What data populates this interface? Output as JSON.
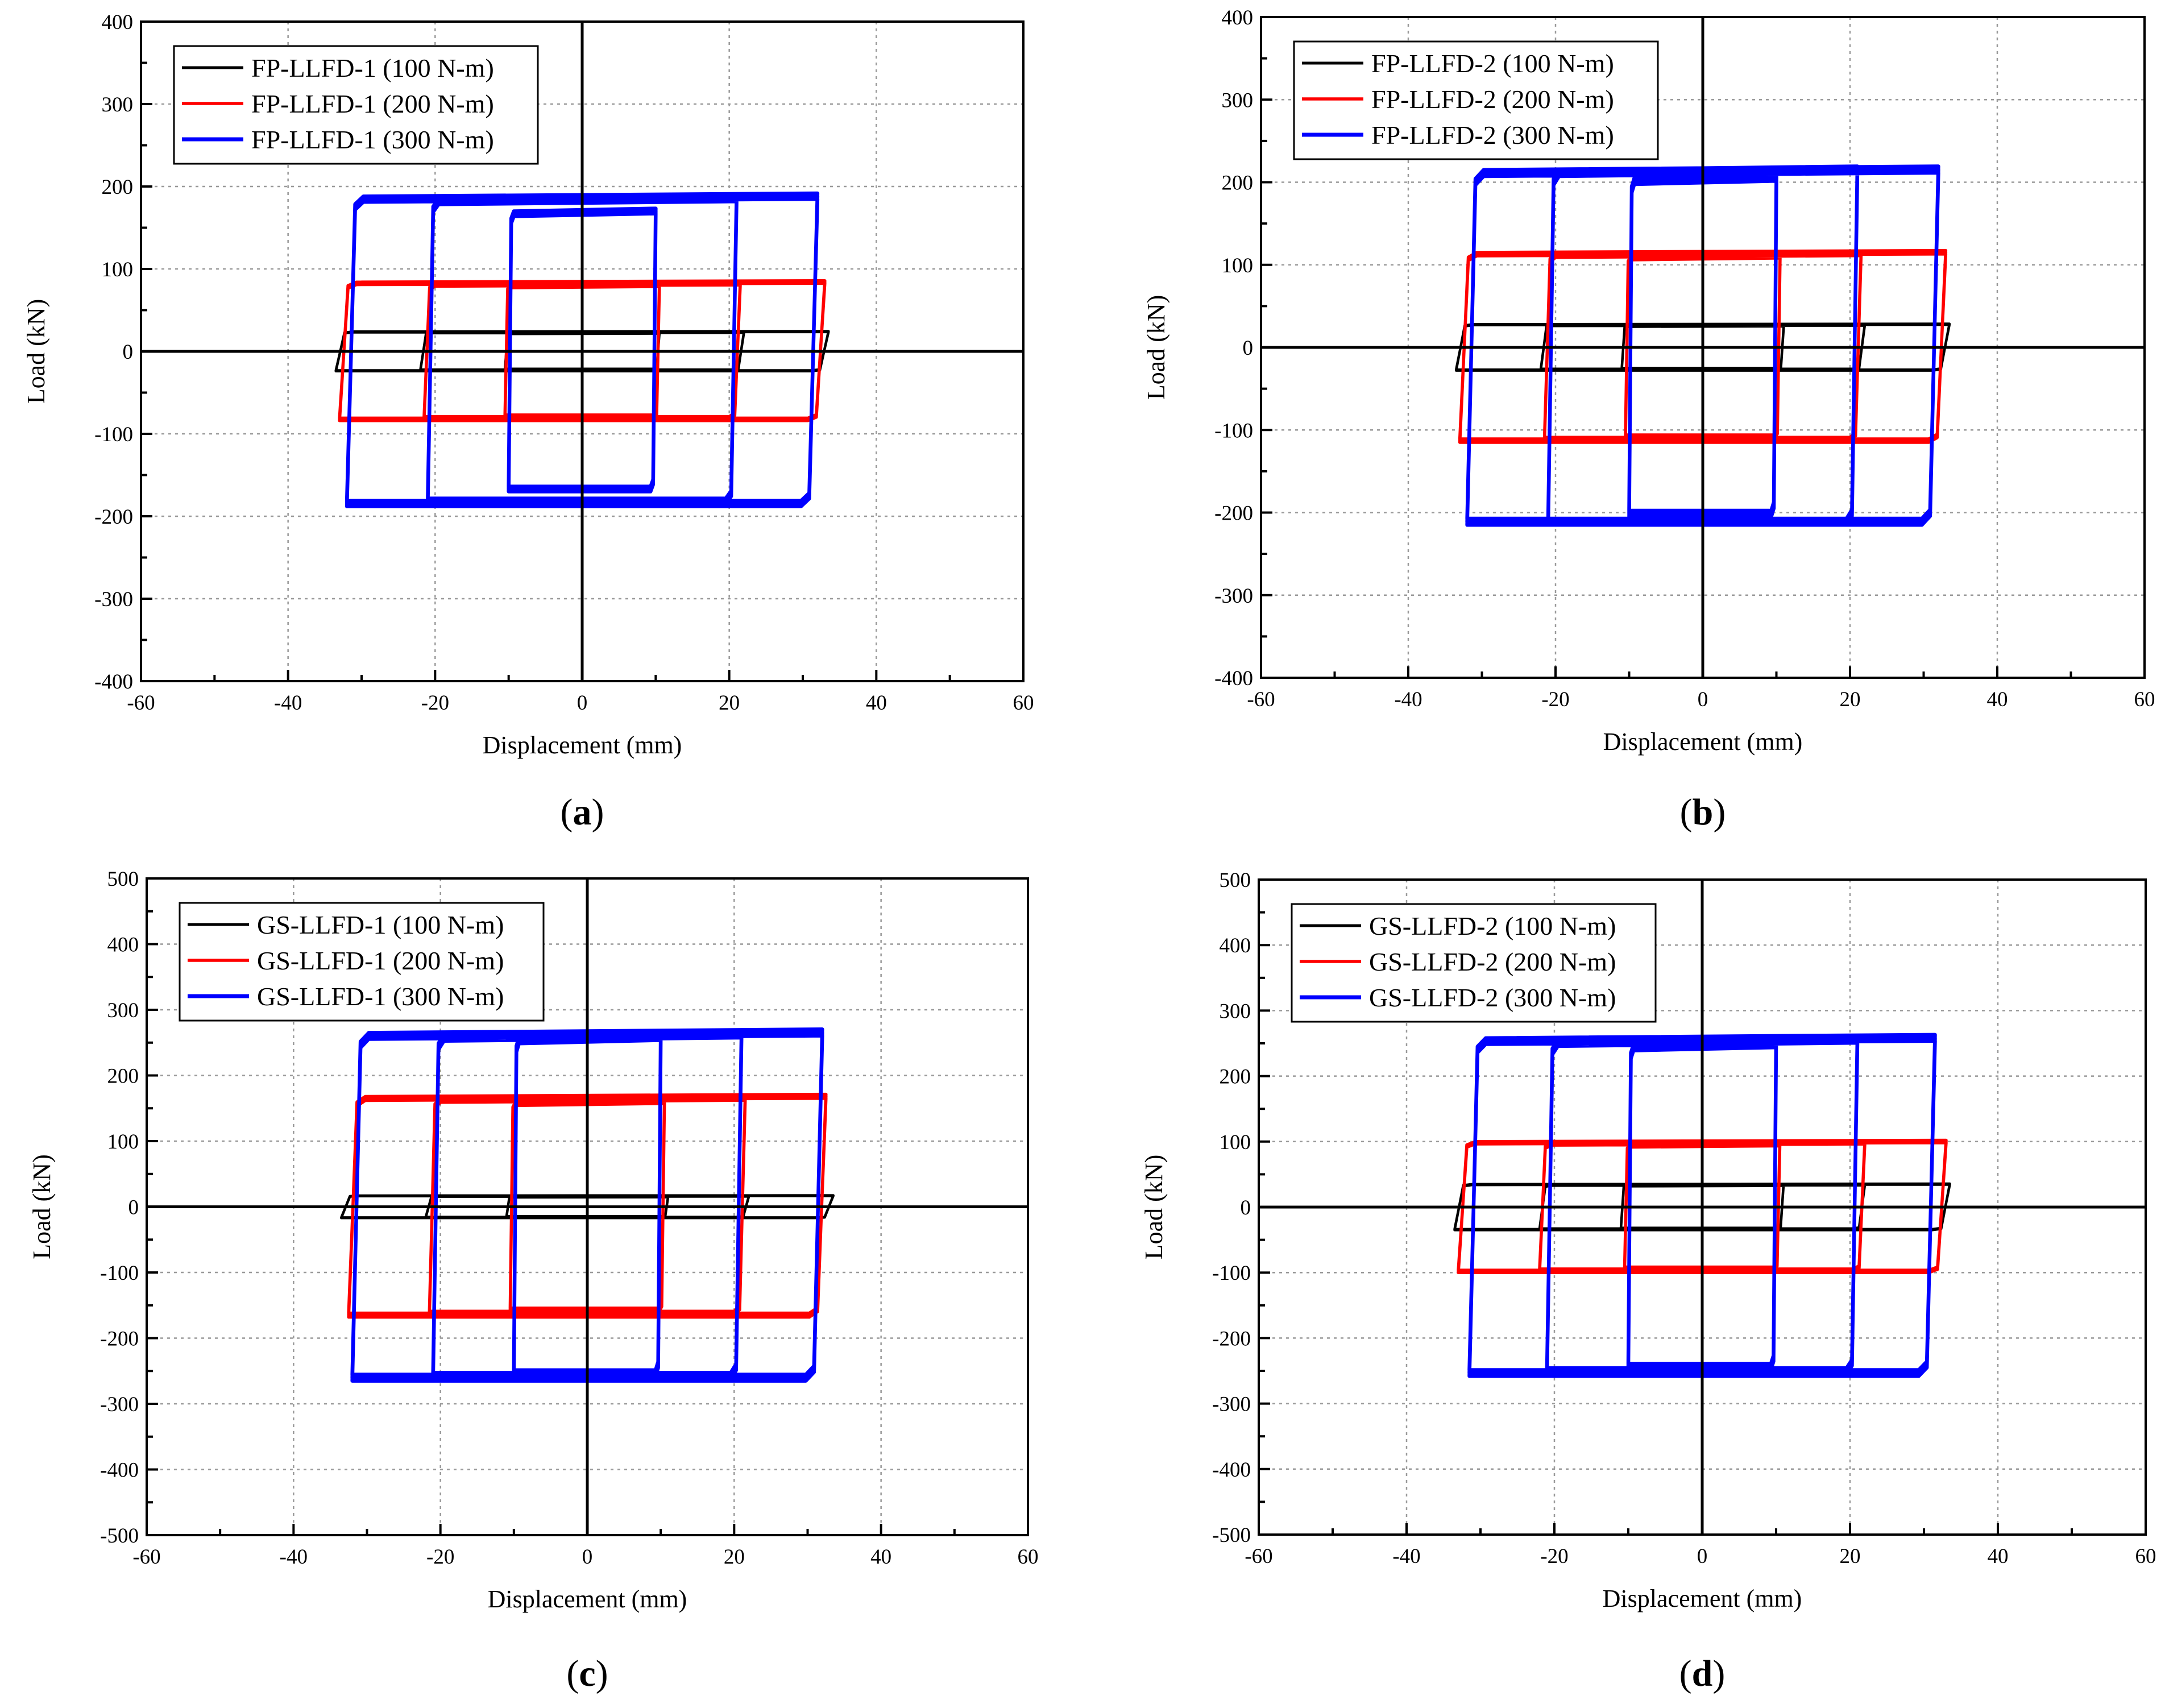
{
  "figure": {
    "panels": [
      "a",
      "b",
      "c",
      "d"
    ]
  },
  "chart_data": [
    {
      "panel": "a",
      "type": "line",
      "caption_letter": "a",
      "xlabel": "Displacement (mm)",
      "ylabel": "Load (kN)",
      "xlim": [
        -60,
        60
      ],
      "ylim": [
        -400,
        400
      ],
      "xticks": [
        -60,
        -40,
        -20,
        0,
        20,
        40,
        60
      ],
      "yticks": [
        -400,
        -300,
        -200,
        -100,
        0,
        100,
        200,
        300,
        400
      ],
      "grid": true,
      "legend_position": "top-left",
      "series": [
        {
          "name": "FP-LLFD-1 (100 N-m)",
          "color": "#000000",
          "amplitudes_mm": [
            10.5,
            22,
            33.5
          ],
          "peak_loads_kN": [
            22,
            23,
            24
          ]
        },
        {
          "name": "FP-LLFD-1 (200 N-m)",
          "color": "#ff0000",
          "amplitudes_mm": [
            10.5,
            21.5,
            33
          ],
          "peak_loads_kN": [
            80,
            82,
            84
          ]
        },
        {
          "name": "FP-LLFD-1 (300 N-m)",
          "color": "#0000ff",
          "amplitudes_mm": [
            10,
            21,
            32
          ],
          "peak_loads_kN": [
            170,
            185,
            188
          ]
        }
      ]
    },
    {
      "panel": "b",
      "type": "line",
      "caption_letter": "b",
      "xlabel": "Displacement (mm)",
      "ylabel": "Load (kN)",
      "xlim": [
        -60,
        60
      ],
      "ylim": [
        -400,
        400
      ],
      "xticks": [
        -60,
        -40,
        -20,
        0,
        20,
        40,
        60
      ],
      "yticks": [
        -400,
        -300,
        -200,
        -100,
        0,
        100,
        200,
        300,
        400
      ],
      "grid": true,
      "legend_position": "top-left",
      "series": [
        {
          "name": "FP-LLFD-2 (100 N-m)",
          "color": "#000000",
          "amplitudes_mm": [
            11,
            22,
            33.5
          ],
          "peak_loads_kN": [
            26,
            27,
            28
          ]
        },
        {
          "name": "FP-LLFD-2 (200 N-m)",
          "color": "#ff0000",
          "amplitudes_mm": [
            10.5,
            21.5,
            33
          ],
          "peak_loads_kN": [
            110,
            113,
            115
          ]
        },
        {
          "name": "FP-LLFD-2 (300 N-m)",
          "color": "#0000ff",
          "amplitudes_mm": [
            10,
            21,
            32
          ],
          "peak_loads_kN": [
            205,
            215,
            215
          ]
        }
      ]
    },
    {
      "panel": "c",
      "type": "line",
      "caption_letter": "c",
      "xlabel": "Displacement (mm)",
      "ylabel": "Load (kN)",
      "xlim": [
        -60,
        60
      ],
      "ylim": [
        -500,
        500
      ],
      "xticks": [
        -60,
        -40,
        -20,
        0,
        20,
        40,
        60
      ],
      "yticks": [
        -500,
        -400,
        -300,
        -200,
        -100,
        0,
        100,
        200,
        300,
        400,
        500
      ],
      "grid": true,
      "legend_position": "top-left",
      "series": [
        {
          "name": "GS-LLFD-1 (100 N-m)",
          "color": "#000000",
          "amplitudes_mm": [
            11,
            22,
            33.5
          ],
          "peak_loads_kN": [
            15,
            16,
            17
          ]
        },
        {
          "name": "GS-LLFD-1 (200 N-m)",
          "color": "#ff0000",
          "amplitudes_mm": [
            10.5,
            21.5,
            32.5
          ],
          "peak_loads_kN": [
            160,
            165,
            168
          ]
        },
        {
          "name": "GS-LLFD-1 (300 N-m)",
          "color": "#0000ff",
          "amplitudes_mm": [
            10,
            21,
            32
          ],
          "peak_loads_kN": [
            258,
            262,
            265
          ]
        }
      ]
    },
    {
      "panel": "d",
      "type": "line",
      "caption_letter": "d",
      "xlabel": "Displacement (mm)",
      "ylabel": "Load (kN)",
      "xlim": [
        -60,
        60
      ],
      "ylim": [
        -500,
        500
      ],
      "xticks": [
        -60,
        -40,
        -20,
        0,
        20,
        40,
        60
      ],
      "yticks": [
        -500,
        -400,
        -300,
        -200,
        -100,
        0,
        100,
        200,
        300,
        400,
        500
      ],
      "grid": true,
      "legend_position": "top-left",
      "series": [
        {
          "name": "GS-LLFD-2 (100 N-m)",
          "color": "#000000",
          "amplitudes_mm": [
            11,
            22,
            33.5
          ],
          "peak_loads_kN": [
            33,
            34,
            35
          ]
        },
        {
          "name": "GS-LLFD-2 (200 N-m)",
          "color": "#ff0000",
          "amplitudes_mm": [
            10.5,
            22,
            33
          ],
          "peak_loads_kN": [
            95,
            98,
            100
          ]
        },
        {
          "name": "GS-LLFD-2 (300 N-m)",
          "color": "#0000ff",
          "amplitudes_mm": [
            10,
            21,
            31.5
          ],
          "peak_loads_kN": [
            248,
            255,
            258
          ]
        }
      ]
    }
  ]
}
